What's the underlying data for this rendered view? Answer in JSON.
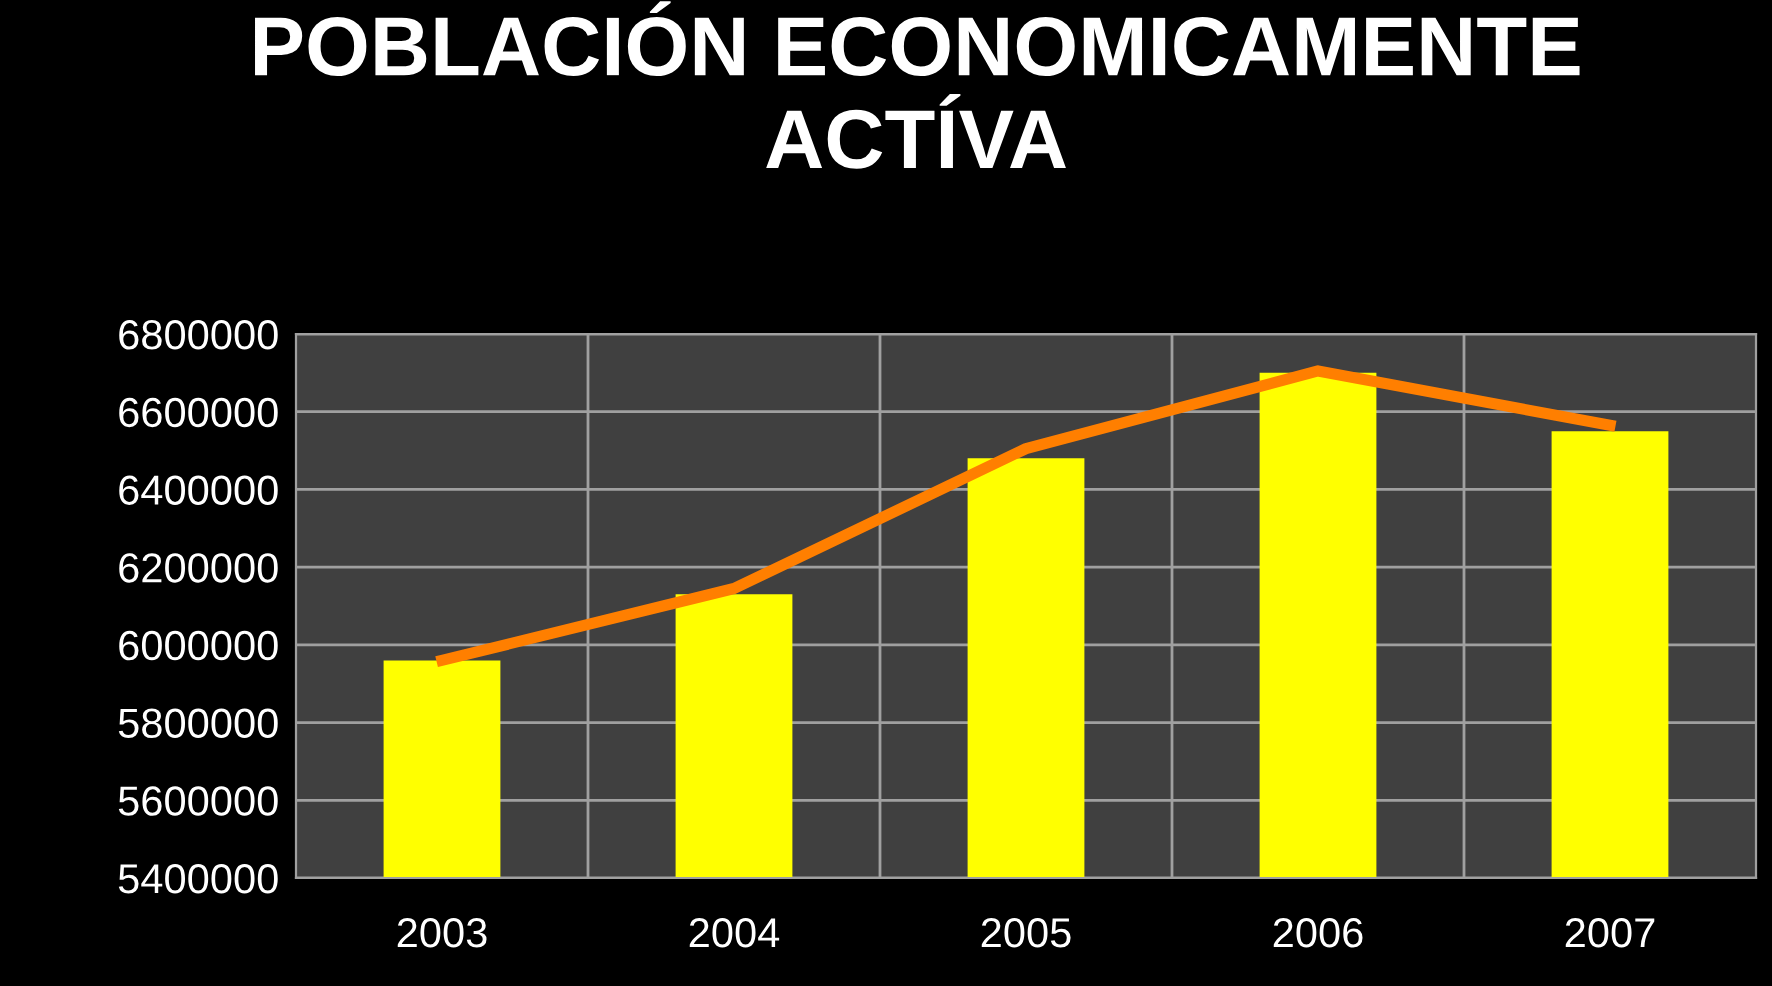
{
  "chart_data": {
    "type": "bar",
    "title": "POBLACIÓN ECONOMICAMENTE\nACTÍVA",
    "categories": [
      "2003",
      "2004",
      "2005",
      "2006",
      "2007"
    ],
    "series": [
      {
        "color": "#ffff00",
        "values": [
          5960000,
          6130000,
          6480000,
          6700000,
          6550000
        ]
      },
      {
        "type": "line",
        "color": "#ff7f00",
        "values": [
          5960000,
          6145000,
          6505000,
          6705000,
          6565000
        ]
      }
    ],
    "ylim": [
      5400000,
      6800000
    ],
    "yticks": [
      5400000,
      5600000,
      5800000,
      6000000,
      6200000,
      6400000,
      6600000,
      6800000
    ],
    "grid": true,
    "marker": "none",
    "line_style": "solid"
  }
}
